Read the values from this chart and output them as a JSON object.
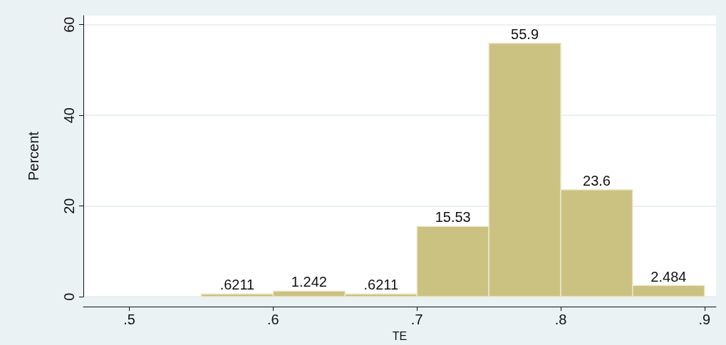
{
  "chart_data": {
    "type": "histogram",
    "xlabel": "TE",
    "ylabel": "Percent",
    "bins": [
      0.55,
      0.6,
      0.65,
      0.7,
      0.75,
      0.8,
      0.85,
      0.9
    ],
    "values": [
      0.6211,
      1.242,
      0.6211,
      15.53,
      55.9,
      23.6,
      2.484
    ],
    "value_labels": [
      ".6211",
      "1.242",
      ".6211",
      "15.53",
      "55.9",
      "23.6",
      "2.484"
    ],
    "color": "#cbc282",
    "xlim": [
      0.468,
      0.908
    ],
    "xticks": [
      {
        "value": 0.5,
        "label": ".5"
      },
      {
        "value": 0.6,
        "label": ".6"
      },
      {
        "value": 0.7,
        "label": ".7"
      },
      {
        "value": 0.8,
        "label": ".8"
      },
      {
        "value": 0.9,
        "label": ".9"
      }
    ],
    "ylim": [
      0,
      62
    ],
    "yticks": [
      0,
      20,
      40,
      60
    ],
    "grid": "y"
  }
}
